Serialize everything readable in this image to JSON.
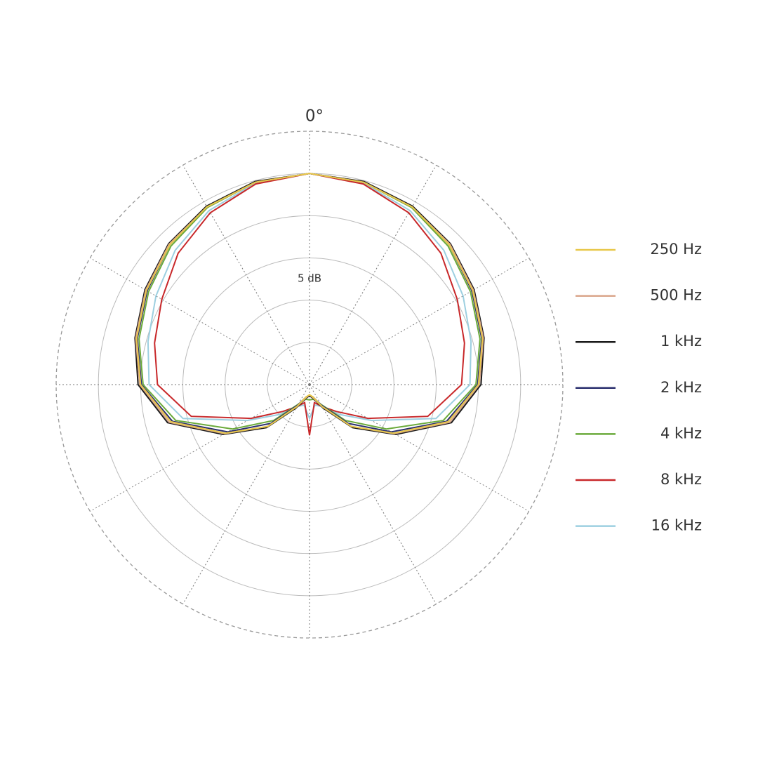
{
  "chart_data": {
    "type": "polar",
    "theta_label": "0°",
    "r_label": "5 dB",
    "rlim": [
      -30,
      0
    ],
    "rgrid": [
      -25,
      -20,
      -15,
      -10,
      -5
    ],
    "spokes": [
      0,
      30,
      60,
      90,
      120,
      150,
      180,
      210,
      240,
      270,
      300,
      330
    ],
    "theta": [
      0,
      15,
      30,
      45,
      60,
      75,
      90,
      105,
      120,
      135,
      150,
      165,
      180,
      195,
      210,
      225,
      240,
      255,
      270,
      285,
      300,
      315,
      330,
      345
    ],
    "series": [
      {
        "name": "250 Hz",
        "color": "#e8c84a",
        "values": [
          -5,
          -5.2,
          -5.7,
          -6.6,
          -7.7,
          -8.8,
          -10,
          -13,
          -18.5,
          -23,
          -27,
          -28.5,
          -28.8,
          -28.5,
          -27,
          -23,
          -18.5,
          -13,
          -10,
          -8.8,
          -7.7,
          -6.6,
          -5.7,
          -5.2
        ]
      },
      {
        "name": "500 Hz",
        "color": "#d9a58a",
        "values": [
          -5,
          -5.2,
          -5.7,
          -6.5,
          -7.6,
          -8.7,
          -9.9,
          -12.8,
          -18.4,
          -23,
          -27,
          -28.4,
          -28.8,
          -28.4,
          -27,
          -23,
          -18.4,
          -12.8,
          -9.9,
          -8.7,
          -7.6,
          -6.5,
          -5.7,
          -5.2
        ]
      },
      {
        "name": "1 kHz",
        "color": "#1a1a1a",
        "values": [
          -5,
          -5.1,
          -5.6,
          -6.4,
          -7.5,
          -8.6,
          -9.7,
          -12.6,
          -18.2,
          -22.8,
          -26.8,
          -28.3,
          -28.7,
          -28.3,
          -26.8,
          -22.8,
          -18.2,
          -12.6,
          -9.7,
          -8.6,
          -7.5,
          -6.4,
          -5.6,
          -5.1
        ]
      },
      {
        "name": "2 kHz",
        "color": "#2a2f6e",
        "values": [
          -5,
          -5.2,
          -5.7,
          -6.6,
          -7.8,
          -8.9,
          -10.1,
          -13.2,
          -18.8,
          -23.5,
          -27.2,
          -28.5,
          -28.6,
          -28.5,
          -27.2,
          -23.5,
          -18.8,
          -13.2,
          -10.1,
          -8.9,
          -7.8,
          -6.6,
          -5.7,
          -5.2
        ]
      },
      {
        "name": "4 kHz",
        "color": "#6aaa3a",
        "values": [
          -5,
          -5.2,
          -5.8,
          -6.8,
          -8,
          -9.1,
          -10.3,
          -13.6,
          -19.5,
          -24,
          -27.3,
          -28.2,
          -28.2,
          -28.2,
          -27.3,
          -24,
          -19.5,
          -13.6,
          -10.3,
          -9.1,
          -8,
          -6.8,
          -5.8,
          -5.2
        ]
      },
      {
        "name": "8 kHz",
        "color": "#c8282a",
        "values": [
          -5,
          -5.4,
          -6.5,
          -8,
          -9.8,
          -11,
          -12,
          -15.5,
          -22,
          -25.5,
          -27,
          -27.8,
          -24,
          -27.8,
          -27,
          -25.5,
          -22,
          -15.5,
          -12,
          -11,
          -9.8,
          -8,
          -6.5,
          -5.4
        ]
      },
      {
        "name": "16 kHz",
        "color": "#9ccfe0",
        "values": [
          -5,
          -5.3,
          -6.2,
          -7.5,
          -9,
          -10.2,
          -11,
          -14.5,
          -21.5,
          -25,
          -27,
          -27.5,
          -26,
          -27.5,
          -27,
          -25,
          -21.5,
          -14.5,
          -11,
          -10.2,
          -9,
          -7.5,
          -6.2,
          -5.3
        ]
      }
    ]
  }
}
